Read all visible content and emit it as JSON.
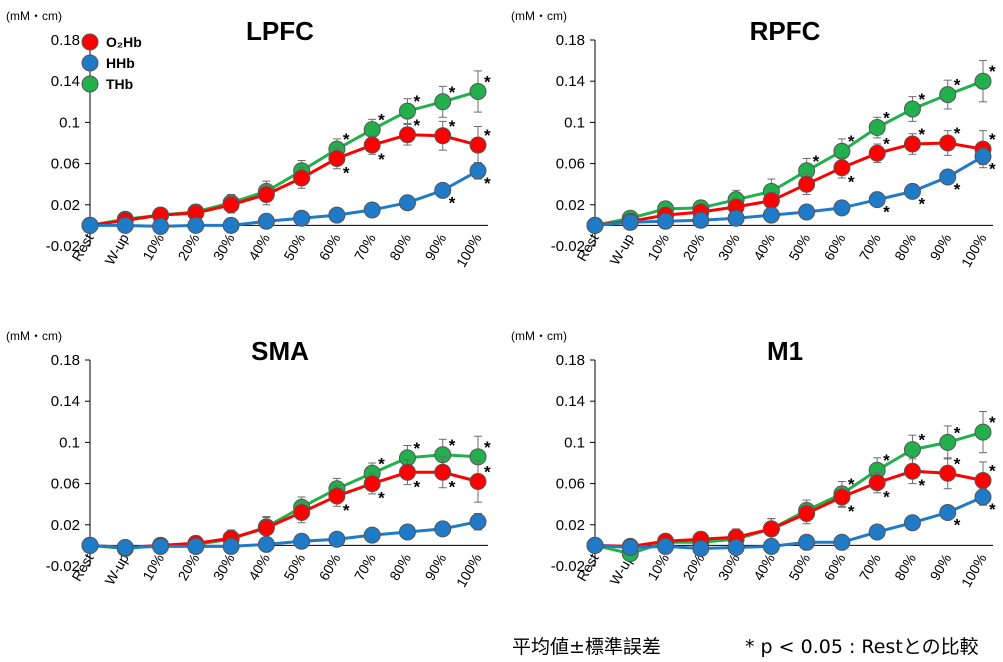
{
  "chart_data": [
    {
      "type": "line",
      "title": "LPFC",
      "unit_label": "(mM・cm)",
      "ylim": [
        -0.02,
        0.18
      ],
      "yticks": [
        "-0.02",
        "0.02",
        "0.06",
        "0.1",
        "0.14",
        "0.18"
      ],
      "categories": [
        "Rest",
        "W-up",
        "10%",
        "20%",
        "30%",
        "40%",
        "50%",
        "60%",
        "70%",
        "80%",
        "90%",
        "100%"
      ],
      "legend": {
        "show": true,
        "position": "top-left"
      },
      "series": [
        {
          "name": "O₂Hb",
          "color": "#ff0000",
          "values": [
            0.0,
            0.005,
            0.01,
            0.012,
            0.02,
            0.03,
            0.046,
            0.065,
            0.078,
            0.088,
            0.087,
            0.078
          ],
          "errors": [
            0.002,
            0.004,
            0.006,
            0.007,
            0.008,
            0.01,
            0.01,
            0.01,
            0.009,
            0.01,
            0.014,
            0.018
          ],
          "significant": [
            false,
            false,
            false,
            false,
            false,
            false,
            false,
            true,
            true,
            true,
            true,
            true
          ]
        },
        {
          "name": "HHb",
          "color": "#1f7ac8",
          "values": [
            0.0,
            0.0,
            -0.001,
            0.0,
            0.0,
            0.004,
            0.007,
            0.01,
            0.015,
            0.022,
            0.034,
            0.053
          ],
          "errors": [
            0.001,
            0.002,
            0.002,
            0.002,
            0.002,
            0.002,
            0.002,
            0.003,
            0.004,
            0.005,
            0.006,
            0.008
          ],
          "significant": [
            false,
            false,
            false,
            false,
            false,
            false,
            false,
            false,
            false,
            false,
            true,
            true
          ]
        },
        {
          "name": "THb",
          "color": "#21b04b",
          "values": [
            0.0,
            0.006,
            0.01,
            0.013,
            0.022,
            0.033,
            0.053,
            0.074,
            0.093,
            0.111,
            0.12,
            0.13
          ],
          "errors": [
            0.002,
            0.004,
            0.006,
            0.007,
            0.008,
            0.01,
            0.01,
            0.01,
            0.01,
            0.012,
            0.015,
            0.02
          ],
          "significant": [
            false,
            false,
            false,
            false,
            false,
            false,
            false,
            true,
            true,
            true,
            true,
            true
          ]
        }
      ]
    },
    {
      "type": "line",
      "title": "RPFC",
      "unit_label": "(mM・cm)",
      "ylim": [
        -0.02,
        0.18
      ],
      "yticks": [
        "-0.02",
        "0.02",
        "0.06",
        "0.1",
        "0.14",
        "0.18"
      ],
      "categories": [
        "Rest",
        "W-up",
        "10%",
        "20%",
        "30%",
        "40%",
        "50%",
        "60%",
        "70%",
        "80%",
        "90%",
        "100%"
      ],
      "legend": {
        "show": false
      },
      "series": [
        {
          "name": "O₂Hb",
          "color": "#ff0000",
          "values": [
            0.0,
            0.004,
            0.01,
            0.013,
            0.018,
            0.024,
            0.04,
            0.056,
            0.07,
            0.079,
            0.08,
            0.074
          ],
          "errors": [
            0.002,
            0.004,
            0.005,
            0.006,
            0.007,
            0.008,
            0.01,
            0.01,
            0.009,
            0.01,
            0.012,
            0.018
          ],
          "significant": [
            false,
            false,
            false,
            false,
            false,
            false,
            false,
            true,
            true,
            true,
            true,
            true
          ]
        },
        {
          "name": "HHb",
          "color": "#1f7ac8",
          "values": [
            0.0,
            0.003,
            0.004,
            0.005,
            0.007,
            0.01,
            0.013,
            0.017,
            0.025,
            0.033,
            0.047,
            0.067
          ],
          "errors": [
            0.002,
            0.002,
            0.002,
            0.002,
            0.002,
            0.002,
            0.002,
            0.003,
            0.004,
            0.005,
            0.006,
            0.008
          ],
          "significant": [
            false,
            false,
            false,
            false,
            false,
            false,
            false,
            false,
            true,
            true,
            true,
            true
          ]
        },
        {
          "name": "THb",
          "color": "#21b04b",
          "values": [
            0.0,
            0.007,
            0.016,
            0.017,
            0.025,
            0.033,
            0.053,
            0.072,
            0.095,
            0.113,
            0.127,
            0.14
          ],
          "errors": [
            0.002,
            0.004,
            0.006,
            0.007,
            0.009,
            0.012,
            0.012,
            0.012,
            0.01,
            0.012,
            0.014,
            0.02
          ],
          "significant": [
            false,
            false,
            false,
            false,
            false,
            false,
            true,
            true,
            true,
            true,
            true,
            true
          ]
        }
      ]
    },
    {
      "type": "line",
      "title": "SMA",
      "unit_label": "(mM・cm)",
      "ylim": [
        -0.02,
        0.18
      ],
      "yticks": [
        "-0.02",
        "0.02",
        "0.06",
        "0.1",
        "0.14",
        "0.18"
      ],
      "categories": [
        "Rest",
        "W-up",
        "10%",
        "20%",
        "30%",
        "40%",
        "50%",
        "60%",
        "70%",
        "80%",
        "90%",
        "100%"
      ],
      "legend": {
        "show": false
      },
      "series": [
        {
          "name": "O₂Hb",
          "color": "#ff0000",
          "values": [
            0.0,
            -0.002,
            0.0,
            0.002,
            0.007,
            0.017,
            0.032,
            0.048,
            0.06,
            0.071,
            0.071,
            0.062
          ],
          "errors": [
            0.002,
            0.004,
            0.006,
            0.007,
            0.008,
            0.01,
            0.01,
            0.01,
            0.01,
            0.012,
            0.015,
            0.02
          ],
          "significant": [
            false,
            false,
            false,
            false,
            false,
            false,
            false,
            true,
            true,
            true,
            true,
            true
          ]
        },
        {
          "name": "HHb",
          "color": "#1f7ac8",
          "values": [
            0.0,
            -0.002,
            -0.001,
            -0.001,
            -0.001,
            0.001,
            0.004,
            0.006,
            0.01,
            0.013,
            0.016,
            0.023
          ],
          "errors": [
            0.002,
            0.002,
            0.002,
            0.002,
            0.002,
            0.002,
            0.002,
            0.003,
            0.004,
            0.005,
            0.006,
            0.008
          ],
          "significant": [
            false,
            false,
            false,
            false,
            false,
            false,
            false,
            false,
            false,
            false,
            false,
            false
          ]
        },
        {
          "name": "THb",
          "color": "#21b04b",
          "values": [
            0.0,
            -0.003,
            0.0,
            0.001,
            0.006,
            0.018,
            0.037,
            0.055,
            0.07,
            0.085,
            0.088,
            0.086
          ],
          "errors": [
            0.002,
            0.004,
            0.006,
            0.007,
            0.008,
            0.01,
            0.01,
            0.01,
            0.01,
            0.012,
            0.015,
            0.02
          ],
          "significant": [
            false,
            false,
            false,
            false,
            false,
            false,
            false,
            false,
            true,
            true,
            true,
            true
          ]
        }
      ]
    },
    {
      "type": "line",
      "title": "M1",
      "unit_label": "(mM・cm)",
      "ylim": [
        -0.02,
        0.18
      ],
      "yticks": [
        "-0.02",
        "0.02",
        "0.06",
        "0.1",
        "0.14",
        "0.18"
      ],
      "categories": [
        "Rest",
        "W-up",
        "10%",
        "20%",
        "30%",
        "40%",
        "50%",
        "60%",
        "70%",
        "80%",
        "90%",
        "100%"
      ],
      "legend": {
        "show": false
      },
      "series": [
        {
          "name": "O₂Hb",
          "color": "#ff0000",
          "values": [
            0.0,
            -0.001,
            0.004,
            0.006,
            0.008,
            0.016,
            0.031,
            0.047,
            0.061,
            0.072,
            0.07,
            0.063
          ],
          "errors": [
            0.002,
            0.004,
            0.006,
            0.007,
            0.008,
            0.01,
            0.01,
            0.01,
            0.01,
            0.012,
            0.015,
            0.018
          ],
          "significant": [
            false,
            false,
            false,
            false,
            false,
            false,
            false,
            true,
            true,
            true,
            true,
            true
          ]
        },
        {
          "name": "HHb",
          "color": "#1f7ac8",
          "values": [
            0.0,
            -0.002,
            -0.001,
            -0.003,
            -0.002,
            -0.001,
            0.003,
            0.003,
            0.013,
            0.022,
            0.032,
            0.047
          ],
          "errors": [
            0.002,
            0.002,
            0.002,
            0.002,
            0.002,
            0.002,
            0.002,
            0.003,
            0.004,
            0.005,
            0.006,
            0.008
          ],
          "significant": [
            false,
            false,
            false,
            false,
            false,
            false,
            false,
            false,
            false,
            false,
            true,
            true
          ]
        },
        {
          "name": "THb",
          "color": "#21b04b",
          "values": [
            0.0,
            -0.008,
            0.003,
            0.003,
            0.006,
            0.016,
            0.034,
            0.05,
            0.073,
            0.093,
            0.1,
            0.11
          ],
          "errors": [
            0.002,
            0.004,
            0.006,
            0.007,
            0.008,
            0.01,
            0.01,
            0.012,
            0.012,
            0.014,
            0.016,
            0.02
          ],
          "significant": [
            false,
            false,
            false,
            false,
            false,
            false,
            false,
            true,
            true,
            true,
            true,
            true
          ]
        }
      ]
    }
  ],
  "footnote": {
    "error_note": "平均値±標準誤差",
    "significance_note": "* p < 0.05 : Restとの比較"
  }
}
